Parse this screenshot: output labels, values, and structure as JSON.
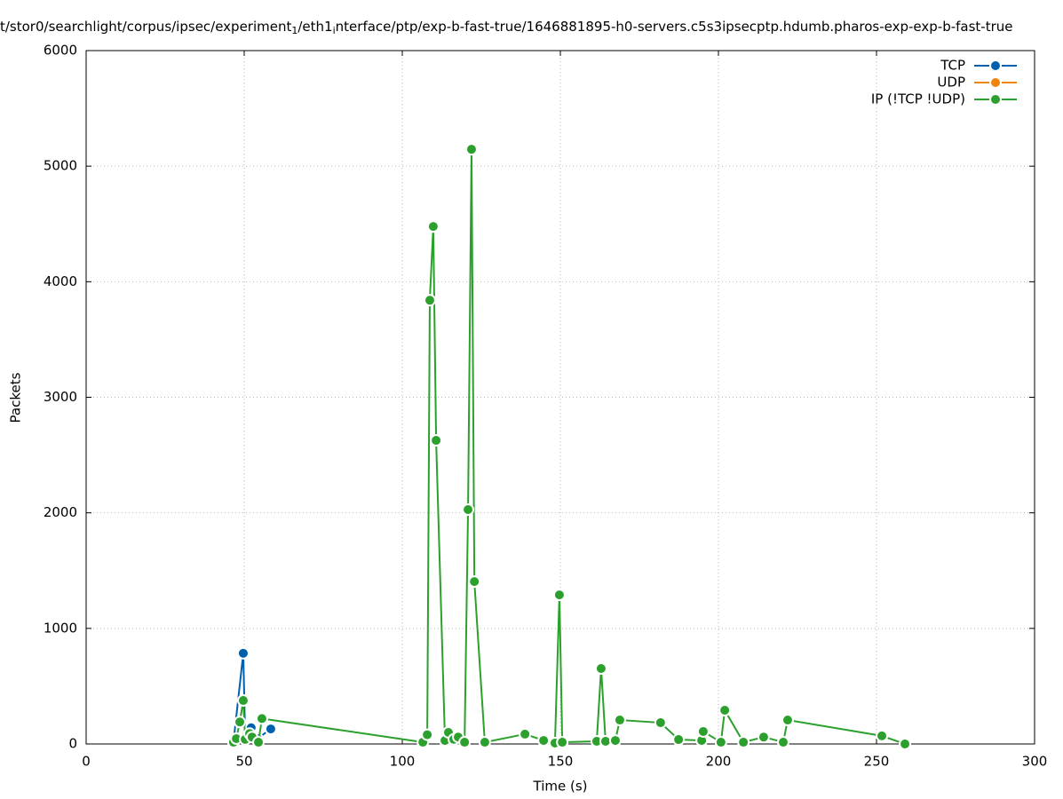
{
  "chart_data": {
    "type": "line",
    "title": [
      "t/stor0/searchlight/corpus/ipsec/experiment",
      "1",
      "/eth1",
      "i",
      "nterface/ptp/exp-b-fast-true/1646881895-h0-servers.c5s3ipsecptp.hdumb.pharos-exp-exp-b-fast-true"
    ],
    "xlabel": "Time (s)",
    "ylabel": "Packets",
    "xlim": [
      0,
      300
    ],
    "xticks": [
      0,
      50,
      100,
      150,
      200,
      250,
      300
    ],
    "ylim": [
      0,
      6000
    ],
    "yticks": [
      0,
      1000,
      2000,
      3000,
      4000,
      5000,
      6000
    ],
    "grid": true,
    "legend": "top-right",
    "series": [
      {
        "name": "TCP",
        "color": "#0060ad",
        "x": [
          46.6,
          49.7,
          50.3,
          52.2,
          54.2,
          58.4
        ],
        "values": [
          15,
          785,
          60,
          140,
          46,
          130
        ]
      },
      {
        "name": "UDP",
        "color": "#f0850e",
        "x": [],
        "values": []
      },
      {
        "name": "IP (!TCP  !UDP)",
        "color": "#2ca02c",
        "x": [
          46.6,
          47.5,
          48.6,
          49.7,
          50.3,
          51.7,
          52.5,
          54.5,
          55.6,
          106.5,
          107.9,
          108.7,
          109.8,
          110.7,
          113.5,
          114.6,
          116.3,
          117.7,
          119.7,
          120.8,
          121.9,
          122.8,
          126.1,
          138.8,
          144.7,
          148.3,
          149.7,
          150.6,
          161.5,
          162.9,
          164.3,
          167.4,
          168.8,
          181.7,
          187.4,
          194.7,
          195.2,
          200.8,
          202,
          207.9,
          214.3,
          220.5,
          221.9,
          251.7,
          259
        ],
        "values": [
          15,
          46,
          190,
          376,
          40,
          90,
          60,
          15,
          220,
          15,
          80,
          3840,
          4478,
          2627,
          30,
          100,
          40,
          60,
          15,
          2028,
          5146,
          1405,
          15,
          85,
          30,
          8,
          1290,
          15,
          23,
          653,
          23,
          30,
          207,
          184,
          38,
          30,
          108,
          15,
          292,
          15,
          60,
          15,
          207,
          70,
          0
        ]
      }
    ]
  }
}
